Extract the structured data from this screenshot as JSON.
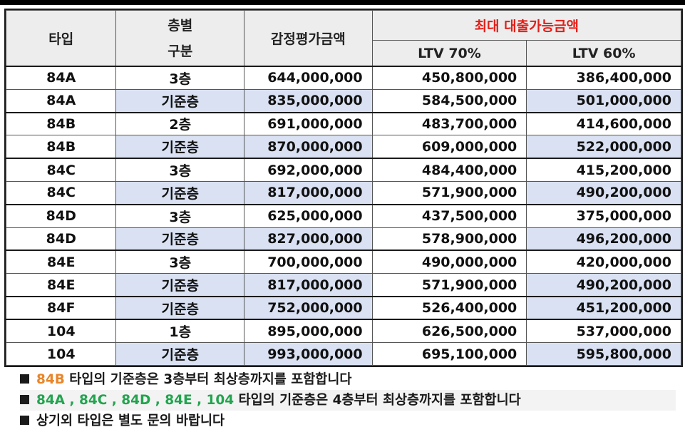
{
  "header": {
    "type": "타입",
    "floor_line1": "층별",
    "floor_line2": "구분",
    "appraisal": "감정평가금액",
    "max_loan": "최대 대출가능금액",
    "ltv70": "LTV 70%",
    "ltv60": "LTV 60%"
  },
  "rows": [
    {
      "type": "84A",
      "floor": "3층",
      "appraisal": "644,000,000",
      "ltv70": "450,800,000",
      "ltv60": "386,400,000"
    },
    {
      "type": "84A",
      "floor": "기준층",
      "appraisal": "835,000,000",
      "ltv70": "584,500,000",
      "ltv60": "501,000,000"
    },
    {
      "type": "84B",
      "floor": "2층",
      "appraisal": "691,000,000",
      "ltv70": "483,700,000",
      "ltv60": "414,600,000"
    },
    {
      "type": "84B",
      "floor": "기준층",
      "appraisal": "870,000,000",
      "ltv70": "609,000,000",
      "ltv60": "522,000,000"
    },
    {
      "type": "84C",
      "floor": "3층",
      "appraisal": "692,000,000",
      "ltv70": "484,400,000",
      "ltv60": "415,200,000"
    },
    {
      "type": "84C",
      "floor": "기준층",
      "appraisal": "817,000,000",
      "ltv70": "571,900,000",
      "ltv60": "490,200,000"
    },
    {
      "type": "84D",
      "floor": "3층",
      "appraisal": "625,000,000",
      "ltv70": "437,500,000",
      "ltv60": "375,000,000"
    },
    {
      "type": "84D",
      "floor": "기준층",
      "appraisal": "827,000,000",
      "ltv70": "578,900,000",
      "ltv60": "496,200,000"
    },
    {
      "type": "84E",
      "floor": "3층",
      "appraisal": "700,000,000",
      "ltv70": "490,000,000",
      "ltv60": "420,000,000"
    },
    {
      "type": "84E",
      "floor": "기준층",
      "appraisal": "817,000,000",
      "ltv70": "571,900,000",
      "ltv60": "490,200,000"
    },
    {
      "type": "84F",
      "floor": "기준층",
      "appraisal": "752,000,000",
      "ltv70": "526,400,000",
      "ltv60": "451,200,000"
    },
    {
      "type": "104",
      "floor": "1층",
      "appraisal": "895,000,000",
      "ltv70": "626,500,000",
      "ltv60": "537,000,000"
    },
    {
      "type": "104",
      "floor": "기준층",
      "appraisal": "993,000,000",
      "ltv70": "695,100,000",
      "ltv60": "595,800,000"
    }
  ],
  "notes": [
    {
      "highlight": "84B",
      "text": " 타입의 기준층은 3층부터 최상층까지를 포함합니다"
    },
    {
      "highlight": "84A , 84C , 84D , 84E , 104",
      "text": " 타입의 기준층은 4층부터 최상층까지를 포함합니다"
    },
    {
      "highlight": "",
      "text": "상기외 타입은 별도 문의 바랍니다"
    }
  ],
  "colors": {
    "header_red": "#e0201a",
    "row_highlight": "#d9e1f2",
    "note_orange": "#e8862a",
    "note_green": "#22a44f"
  }
}
